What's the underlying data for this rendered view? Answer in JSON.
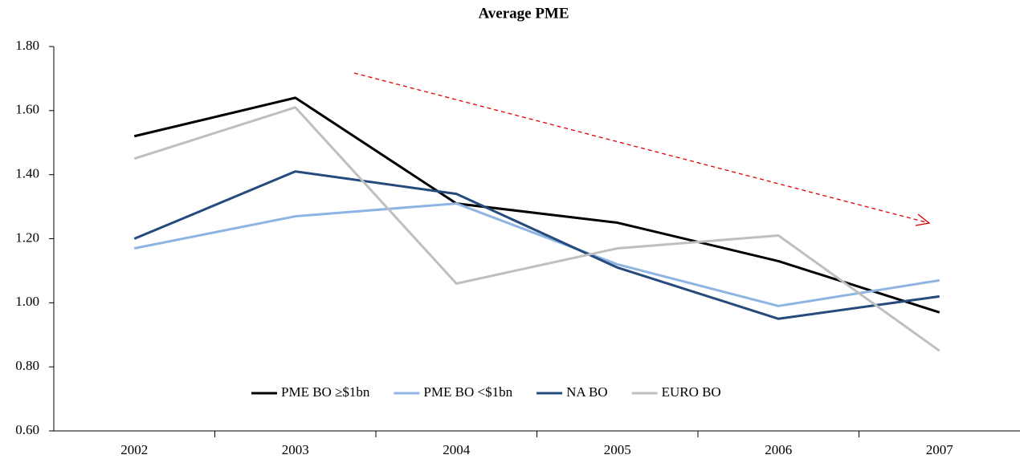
{
  "chart_data": {
    "type": "line",
    "title": "Average PME",
    "categories": [
      "2002",
      "2003",
      "2004",
      "2005",
      "2006",
      "2007"
    ],
    "series": [
      {
        "name": "PME BO ≥$1bn",
        "color": "#000000",
        "values": [
          1.52,
          1.64,
          1.31,
          1.25,
          1.13,
          0.97
        ]
      },
      {
        "name": "PME BO <$1bn",
        "color": "#8eb4e3",
        "values": [
          1.17,
          1.27,
          1.31,
          1.12,
          0.99,
          1.07
        ]
      },
      {
        "name": "NA BO",
        "color": "#254a7c",
        "values": [
          1.2,
          1.41,
          1.34,
          1.11,
          0.95,
          1.02
        ]
      },
      {
        "name": "EURO BO",
        "color": "#bfbfbf",
        "values": [
          1.45,
          1.61,
          1.06,
          1.17,
          1.21,
          0.85
        ]
      }
    ],
    "ylim": [
      0.6,
      1.8
    ],
    "yticks": [
      {
        "value": 0.6,
        "label": "0.60"
      },
      {
        "value": 0.8,
        "label": "0.80"
      },
      {
        "value": 1.0,
        "label": "1.00"
      },
      {
        "value": 1.2,
        "label": "1.20"
      },
      {
        "value": 1.4,
        "label": "1.40"
      },
      {
        "value": 1.6,
        "label": "1.60"
      },
      {
        "value": 1.8,
        "label": "1.80"
      }
    ],
    "grid": false
  }
}
